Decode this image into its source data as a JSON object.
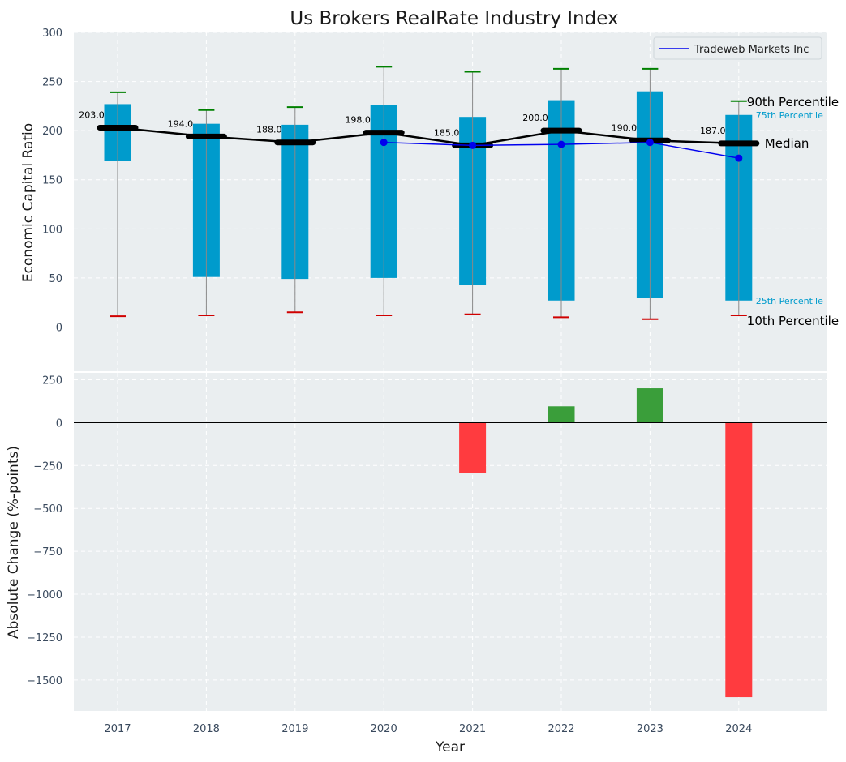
{
  "colors": {
    "panel_bg": "#eaeef0",
    "box": "#009bcc",
    "whisker": "#888888",
    "p90_cap": "#008000",
    "p10_cap": "#d00000",
    "median_line": "#000000",
    "company_line": "#0000ee",
    "positive_bar": "#3a9e3a",
    "negative_bar": "#ff3b3f"
  },
  "chart_data": [
    {
      "type": "box",
      "title": "Us Brokers RealRate Industry Index",
      "ylabel": "Economic Capital Ratio",
      "ylim": [
        -45,
        300
      ],
      "yticks": [
        "0",
        "50",
        "100",
        "150",
        "200",
        "250",
        "300"
      ],
      "categories": [
        "2017",
        "2018",
        "2019",
        "2020",
        "2021",
        "2022",
        "2023",
        "2024"
      ],
      "percentiles": {
        "p10": [
          11,
          12,
          15,
          12,
          13,
          10,
          8,
          12
        ],
        "p25": [
          169,
          51,
          49,
          50,
          43,
          27,
          30,
          27
        ],
        "median": [
          203,
          194,
          188,
          198,
          185,
          200,
          190,
          187
        ],
        "p75": [
          227,
          207,
          206,
          226,
          214,
          231,
          240,
          216
        ],
        "p90": [
          239,
          221,
          224,
          265,
          260,
          263,
          263,
          230
        ]
      },
      "median_labels": [
        "203.0",
        "194.0",
        "188.0",
        "198.0",
        "185.0",
        "200.0",
        "190.0",
        "187.0"
      ],
      "series": [
        {
          "name": "Tradeweb Markets Inc",
          "x": [
            "2020",
            "2021",
            "2022",
            "2023",
            "2024"
          ],
          "values": [
            188,
            185,
            186,
            188,
            172
          ]
        }
      ],
      "annotations": {
        "p90": "90th Percentile",
        "p75": "75th Percentile",
        "median": "Median",
        "p25": "25th Percentile",
        "p10": "10th Percentile"
      },
      "legend_position": "top-right",
      "grid": true
    },
    {
      "type": "bar",
      "xlabel": "Year",
      "ylabel": "Absolute Change (%-points)",
      "ylim": [
        -1680,
        290
      ],
      "yticks": [
        "−1500",
        "−1250",
        "−1000",
        "−750",
        "−500",
        "−250",
        "0",
        "250"
      ],
      "categories": [
        "2017",
        "2018",
        "2019",
        "2020",
        "2021",
        "2022",
        "2023",
        "2024"
      ],
      "values": [
        0,
        0,
        0,
        0,
        -295,
        95,
        200,
        -1600
      ],
      "grid": true
    }
  ]
}
